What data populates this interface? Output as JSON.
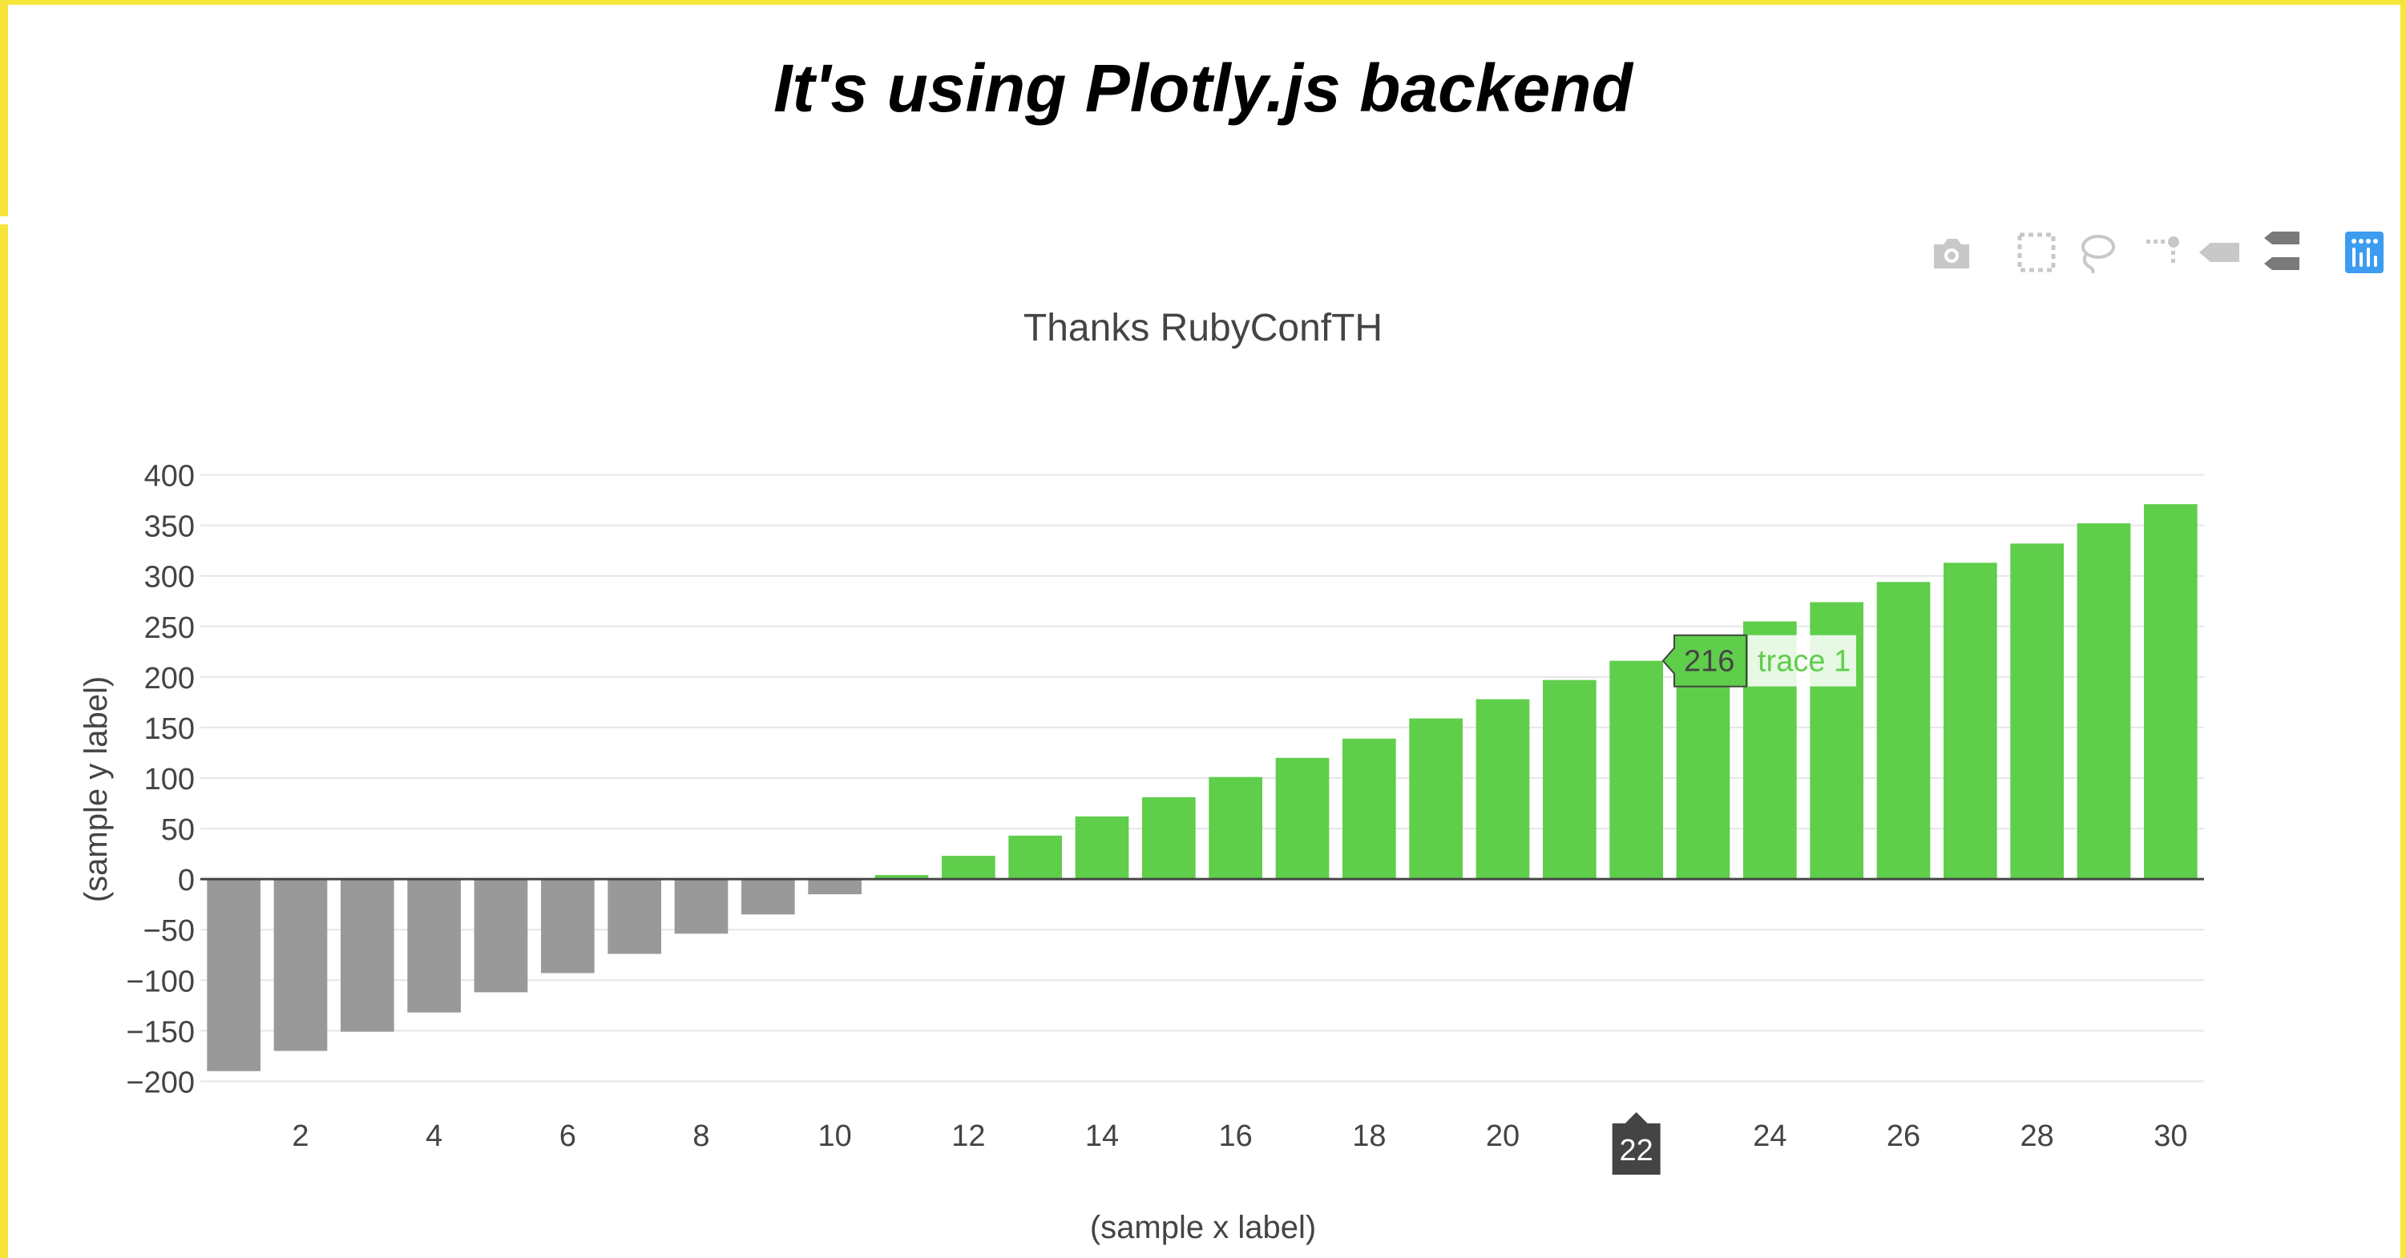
{
  "slide": {
    "title": "It's using Plotly.js backend",
    "frame_color": "#f6e53b"
  },
  "modebar": {
    "buttons": [
      {
        "icon": "camera-icon",
        "color": "#c8c8c8"
      },
      {
        "icon": "box-select-icon",
        "color": "#c8c8c8"
      },
      {
        "icon": "lasso-select-icon",
        "color": "#c8c8c8"
      },
      {
        "icon": "spike-lines-icon",
        "color": "#c8c8c8"
      },
      {
        "icon": "hover-closest-icon",
        "color": "#c8c8c8"
      },
      {
        "icon": "hover-compare-icon",
        "color": "#7a7a7a"
      },
      {
        "icon": "plotly-logo-icon",
        "color": "#3d9cf0"
      }
    ]
  },
  "chart_data": {
    "type": "bar",
    "title": "Thanks RubyConfTH",
    "xlabel": "(sample x label)",
    "ylabel": "(sample y label)",
    "x": [
      1,
      2,
      3,
      4,
      5,
      6,
      7,
      8,
      9,
      10,
      11,
      12,
      13,
      14,
      15,
      16,
      17,
      18,
      19,
      20,
      21,
      22,
      23,
      24,
      25,
      26,
      27,
      28,
      29,
      30
    ],
    "values": [
      -190,
      -170,
      -151,
      -132,
      -112,
      -93,
      -74,
      -54,
      -35,
      -15,
      4,
      23,
      43,
      62,
      81,
      101,
      120,
      139,
      159,
      178,
      197,
      216,
      236,
      255,
      274,
      294,
      313,
      332,
      352,
      371
    ],
    "xlim": [
      0.5,
      30.5
    ],
    "ylim": [
      -210,
      410
    ],
    "yticks": [
      400,
      350,
      300,
      250,
      200,
      150,
      100,
      50,
      0,
      -50,
      -100,
      -150,
      -200
    ],
    "ytick_labels": [
      "400",
      "350",
      "300",
      "250",
      "200",
      "150",
      "100",
      "50",
      "0",
      "−50",
      "−100",
      "−150",
      "−200"
    ],
    "xticks": [
      2,
      4,
      6,
      8,
      10,
      12,
      14,
      16,
      18,
      20,
      22,
      24,
      26,
      28,
      30
    ],
    "xtick_labels": [
      "2",
      "4",
      "6",
      "8",
      "10",
      "12",
      "14",
      "16",
      "18",
      "20",
      "22",
      "24",
      "26",
      "28",
      "30"
    ],
    "grid": true,
    "colors": {
      "positive": "#5fce4b",
      "negative": "#999999",
      "grid": "#e6e6e6",
      "zeroline": "#444444",
      "text": "#444444"
    },
    "hover": {
      "x": 22,
      "value_label": "216",
      "trace_label": "trace 1",
      "x_label": "22"
    }
  }
}
